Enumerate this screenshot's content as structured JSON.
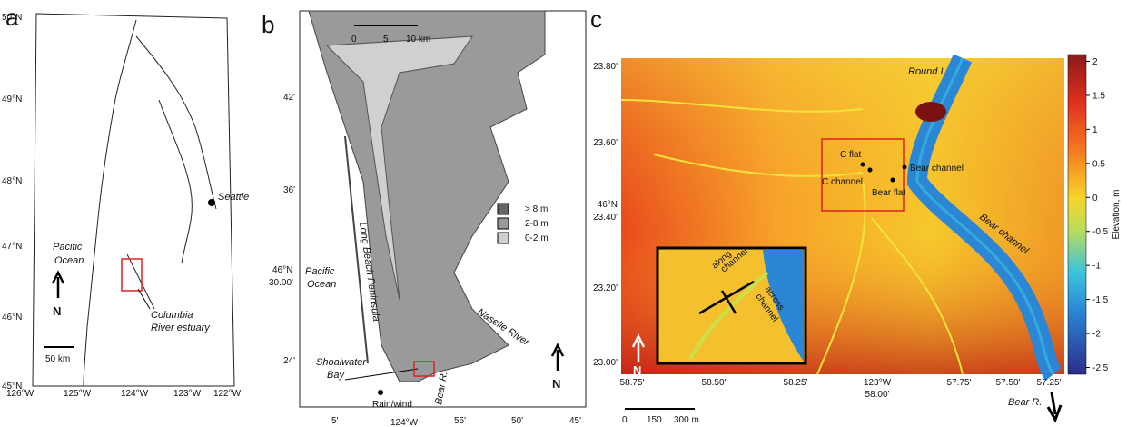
{
  "panel_a": {
    "label": "a",
    "latitudes": [
      "50°N",
      "49°N",
      "48°N",
      "47°N",
      "46°N",
      "45°N"
    ],
    "longitudes": [
      "126°W",
      "125°W",
      "124°W",
      "123°W",
      "122°W"
    ],
    "city": "Seattle",
    "ocean": [
      "Pacific",
      "Ocean"
    ],
    "estuary": [
      "Columbia",
      "River estuary"
    ],
    "north": "N",
    "scale": "50 km"
  },
  "panel_b": {
    "label": "b",
    "scale": [
      "0",
      "5",
      "10 km"
    ],
    "latitudes": [
      "42'",
      "36'",
      "46°N",
      "30.00'",
      "24'"
    ],
    "longitudes": [
      "5'",
      "124°W",
      "55'",
      "50'",
      "45'"
    ],
    "legend": [
      "> 8 m",
      "2-8 m",
      "0-2 m"
    ],
    "ocean": [
      "Pacific",
      "Ocean"
    ],
    "peninsula": "Long Beach Peninsula",
    "river": "Naselle River",
    "bay": [
      "Shoalwater",
      "Bay"
    ],
    "station": "Rain/wind",
    "bear": "Bear R.",
    "north": "N"
  },
  "panel_c": {
    "label": "c",
    "latitudes": [
      "23.80'",
      "23.60'",
      "46°N",
      "23.40'",
      "23.20'",
      "23.00'"
    ],
    "longitudes": [
      "58.75'",
      "58.50'",
      "58.25'",
      "123°W",
      "58.00'",
      "57.75'",
      "57.50'",
      "57.25'"
    ],
    "island": "Round I.",
    "sites": [
      "C flat",
      "C channel",
      "Bear channel",
      "Bear flat"
    ],
    "channel": "Bear channel",
    "inset": [
      "along",
      "channel",
      "across",
      "channel"
    ],
    "north": "N",
    "scale": [
      "0",
      "150",
      "300 m"
    ],
    "bear": "Bear R.",
    "colorbar": {
      "label": "Elevation, m",
      "range": [
        -2.6,
        2.1
      ],
      "ticks": [
        2,
        1.5,
        1,
        0.5,
        0,
        -0.5,
        -1,
        -1.5,
        -2,
        -2.5
      ]
    }
  }
}
